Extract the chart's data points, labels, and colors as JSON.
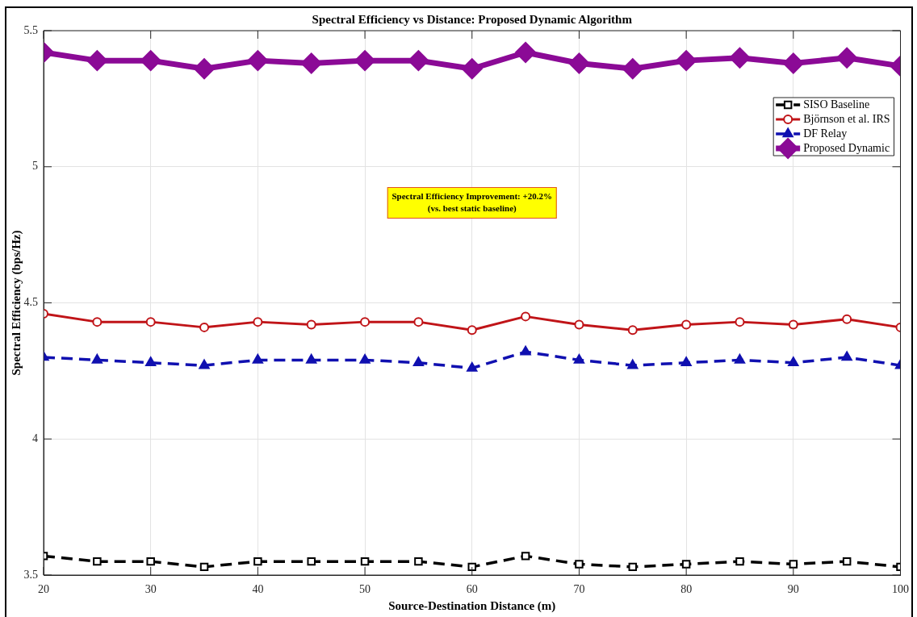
{
  "chart_data": {
    "type": "line",
    "title": "Spectral Efficiency vs Distance: Proposed Dynamic Algorithm",
    "xlabel": "Source-Destination Distance (m)",
    "ylabel": "Spectral Efficiency (bps/Hz)",
    "x": [
      20,
      25,
      30,
      35,
      40,
      45,
      50,
      55,
      60,
      65,
      70,
      75,
      80,
      85,
      90,
      95,
      100
    ],
    "series": [
      {
        "name": "SISO Baseline",
        "color": "#000000",
        "marker": "square",
        "line_style": "dashed",
        "values": [
          3.57,
          3.55,
          3.55,
          3.53,
          3.55,
          3.55,
          3.55,
          3.55,
          3.53,
          3.57,
          3.54,
          3.53,
          3.54,
          3.55,
          3.54,
          3.55,
          3.53
        ]
      },
      {
        "name": "Björnson et al. IRS",
        "color": "#c01418",
        "marker": "circle",
        "line_style": "solid",
        "values": [
          4.46,
          4.43,
          4.43,
          4.41,
          4.43,
          4.42,
          4.43,
          4.43,
          4.4,
          4.45,
          4.42,
          4.4,
          4.42,
          4.43,
          4.42,
          4.44,
          4.41
        ]
      },
      {
        "name": "DF Relay",
        "color": "#1010b0",
        "marker": "triangle",
        "line_style": "dashed",
        "values": [
          4.3,
          4.29,
          4.28,
          4.27,
          4.29,
          4.29,
          4.29,
          4.28,
          4.26,
          4.32,
          4.29,
          4.27,
          4.28,
          4.29,
          4.28,
          4.3,
          4.27
        ]
      },
      {
        "name": "Proposed Dynamic",
        "color": "#8b0a96",
        "marker": "diamond",
        "line_style": "solid",
        "values": [
          5.42,
          5.39,
          5.39,
          5.36,
          5.39,
          5.38,
          5.39,
          5.39,
          5.36,
          5.42,
          5.38,
          5.36,
          5.39,
          5.4,
          5.38,
          5.4,
          5.37
        ]
      }
    ],
    "xlim": [
      20,
      100
    ],
    "xticks": [
      20,
      30,
      40,
      50,
      60,
      70,
      80,
      90,
      100
    ],
    "ylim": [
      3.5,
      5.5
    ],
    "yticks": [
      3.5,
      4,
      4.5,
      5,
      5.5
    ],
    "grid": true,
    "legend": "top right",
    "annotations": [
      "Spectral Efficiency Improvement: +20.2%\n(vs. best static baseline)"
    ]
  }
}
